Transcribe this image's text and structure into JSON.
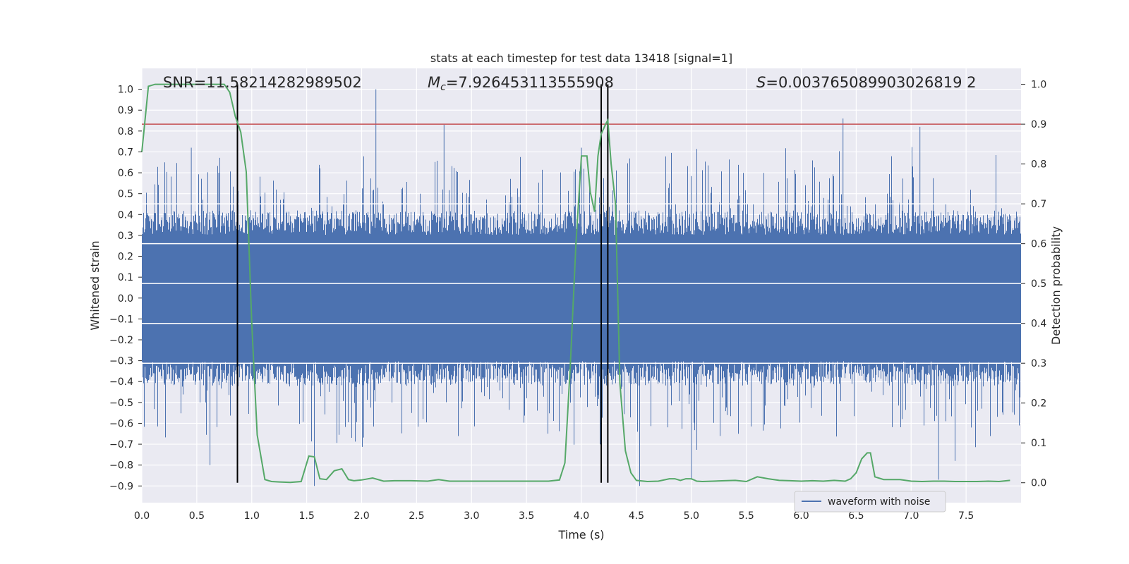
{
  "chart_data": {
    "type": "line",
    "title": "stats at each timestep for test data 13418 [signal=1]",
    "xlabel": "Time (s)",
    "ylabel": "Whitened strain",
    "ylabel_right": "Detection probability",
    "xlim": [
      0.0,
      8.0
    ],
    "ylim": [
      -0.98,
      1.1
    ],
    "ylim_right": [
      -0.05,
      1.04
    ],
    "x_ticks": [
      "0.0",
      "0.5",
      "1.0",
      "1.5",
      "2.0",
      "2.5",
      "3.0",
      "3.5",
      "4.0",
      "4.5",
      "5.0",
      "5.5",
      "6.0",
      "6.5",
      "7.0",
      "7.5"
    ],
    "x_tick_values": [
      0.0,
      0.5,
      1.0,
      1.5,
      2.0,
      2.5,
      3.0,
      3.5,
      4.0,
      4.5,
      5.0,
      5.5,
      6.0,
      6.5,
      7.0,
      7.5
    ],
    "y_ticks": [
      "1.0",
      "0.9",
      "0.8",
      "0.7",
      "0.6",
      "0.5",
      "0.4",
      "0.3",
      "0.2",
      "0.1",
      "0.0",
      "−0.1",
      "−0.2",
      "−0.3",
      "−0.4",
      "−0.5",
      "−0.6",
      "−0.7",
      "−0.8",
      "−0.9"
    ],
    "y_tick_values": [
      1.0,
      0.9,
      0.8,
      0.7,
      0.6,
      0.5,
      0.4,
      0.3,
      0.2,
      0.1,
      0.0,
      -0.1,
      -0.2,
      -0.3,
      -0.4,
      -0.5,
      -0.6,
      -0.7,
      -0.8,
      -0.9
    ],
    "y_right_ticks": [
      "1.0",
      "0.9",
      "0.8",
      "0.7",
      "0.6",
      "0.5",
      "0.4",
      "0.3",
      "0.2",
      "0.1",
      "0.0"
    ],
    "y_right_tick_values": [
      1.0,
      0.9,
      0.8,
      0.7,
      0.6,
      0.5,
      0.4,
      0.3,
      0.2,
      0.1,
      0.0
    ],
    "annotations": {
      "snr": "SNR=11.58214282989502",
      "mc_symbol": "M",
      "mc_sub": "c",
      "mc_value": "=7.926453113555908",
      "s_symbol": "S",
      "s_value": "=0.003765089903026819 2"
    },
    "vertical_lines_x": [
      0.87,
      4.18,
      4.24
    ],
    "threshold_right": 0.9,
    "series": [
      {
        "name": "waveform with noise",
        "color": "#4c72b0",
        "sample_rate": 2048,
        "duration": 8.0,
        "typical_amplitude": 0.42,
        "peak_max": 1.0,
        "peak_min": -0.9
      },
      {
        "name": "",
        "color": "#55a868",
        "axis": "right",
        "x": [
          0.0,
          0.06,
          0.12,
          0.2,
          0.3,
          0.4,
          0.5,
          0.6,
          0.7,
          0.75,
          0.8,
          0.85,
          0.9,
          0.95,
          1.0,
          1.05,
          1.12,
          1.18,
          1.25,
          1.35,
          1.45,
          1.52,
          1.57,
          1.62,
          1.68,
          1.75,
          1.82,
          1.88,
          1.93,
          2.0,
          2.1,
          2.2,
          2.3,
          2.45,
          2.6,
          2.7,
          2.8,
          2.9,
          3.0,
          3.1,
          3.2,
          3.3,
          3.4,
          3.5,
          3.6,
          3.7,
          3.8,
          3.85,
          3.9,
          3.95,
          4.0,
          4.05,
          4.08,
          4.12,
          4.15,
          4.18,
          4.22,
          4.24,
          4.27,
          4.31,
          4.35,
          4.4,
          4.45,
          4.5,
          4.6,
          4.7,
          4.8,
          4.85,
          4.9,
          4.95,
          5.0,
          5.05,
          5.1,
          5.2,
          5.3,
          5.4,
          5.5,
          5.6,
          5.7,
          5.8,
          5.9,
          6.0,
          6.1,
          6.2,
          6.3,
          6.4,
          6.45,
          6.5,
          6.55,
          6.6,
          6.63,
          6.67,
          6.75,
          6.85,
          6.9,
          7.0,
          7.1,
          7.2,
          7.3,
          7.4,
          7.5,
          7.6,
          7.7,
          7.8,
          7.9
        ],
        "y": [
          0.83,
          0.995,
          1.0,
          1.0,
          1.0,
          1.0,
          1.0,
          1.0,
          1.0,
          1.0,
          0.98,
          0.92,
          0.88,
          0.78,
          0.4,
          0.12,
          0.008,
          0.003,
          0.002,
          0.001,
          0.003,
          0.067,
          0.065,
          0.01,
          0.008,
          0.03,
          0.035,
          0.008,
          0.005,
          0.007,
          0.012,
          0.004,
          0.005,
          0.005,
          0.004,
          0.008,
          0.004,
          0.004,
          0.004,
          0.004,
          0.004,
          0.004,
          0.004,
          0.004,
          0.004,
          0.004,
          0.007,
          0.05,
          0.3,
          0.6,
          0.82,
          0.82,
          0.73,
          0.68,
          0.82,
          0.875,
          0.9,
          0.91,
          0.8,
          0.7,
          0.25,
          0.08,
          0.025,
          0.006,
          0.003,
          0.004,
          0.01,
          0.01,
          0.006,
          0.01,
          0.01,
          0.004,
          0.003,
          0.004,
          0.005,
          0.006,
          0.003,
          0.015,
          0.01,
          0.006,
          0.005,
          0.004,
          0.005,
          0.004,
          0.006,
          0.004,
          0.01,
          0.025,
          0.06,
          0.075,
          0.075,
          0.015,
          0.008,
          0.008,
          0.008,
          0.004,
          0.003,
          0.004,
          0.004,
          0.003,
          0.003,
          0.003,
          0.004,
          0.003,
          0.006
        ]
      }
    ],
    "legend": {
      "position": "lower-right",
      "label": "waveform with noise"
    },
    "grid": true
  }
}
